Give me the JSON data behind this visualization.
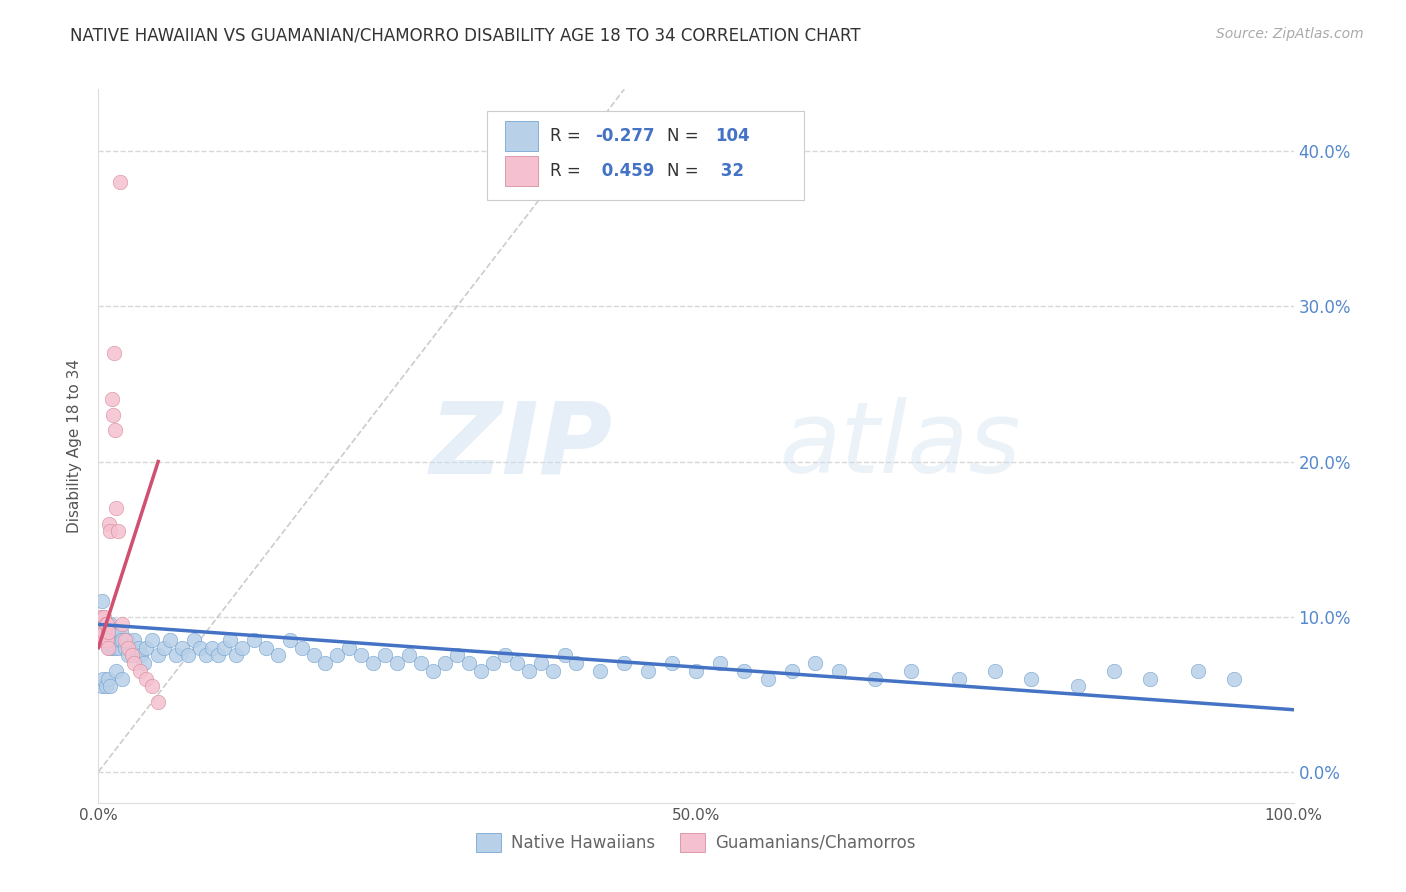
{
  "title": "NATIVE HAWAIIAN VS GUAMANIAN/CHAMORRO DISABILITY AGE 18 TO 34 CORRELATION CHART",
  "source": "Source: ZipAtlas.com",
  "ylabel": "Disability Age 18 to 34",
  "r_blue": -0.277,
  "n_blue": 104,
  "r_pink": 0.459,
  "n_pink": 32,
  "blue_color": "#b8d0e8",
  "blue_edge_color": "#6699cc",
  "blue_line_color": "#4472c4",
  "pink_color": "#f5c0d0",
  "pink_edge_color": "#d08090",
  "pink_line_color": "#d05070",
  "legend_label_blue": "Native Hawaiians",
  "legend_label_pink": "Guamanians/Chamorros",
  "watermark_zip": "ZIP",
  "watermark_atlas": "atlas",
  "diag_color": "#cccccc",
  "grid_color": "#d8d8d8",
  "background_color": "#ffffff",
  "blue_scatter_x": [
    0.002,
    0.003,
    0.004,
    0.005,
    0.005,
    0.006,
    0.007,
    0.007,
    0.008,
    0.009,
    0.01,
    0.011,
    0.012,
    0.013,
    0.014,
    0.015,
    0.016,
    0.017,
    0.018,
    0.019,
    0.02,
    0.022,
    0.024,
    0.026,
    0.028,
    0.03,
    0.032,
    0.034,
    0.036,
    0.038,
    0.04,
    0.045,
    0.05,
    0.055,
    0.06,
    0.065,
    0.07,
    0.075,
    0.08,
    0.085,
    0.09,
    0.095,
    0.1,
    0.105,
    0.11,
    0.115,
    0.12,
    0.13,
    0.14,
    0.15,
    0.16,
    0.17,
    0.18,
    0.19,
    0.2,
    0.21,
    0.22,
    0.23,
    0.24,
    0.25,
    0.26,
    0.27,
    0.28,
    0.29,
    0.3,
    0.31,
    0.32,
    0.33,
    0.34,
    0.35,
    0.36,
    0.37,
    0.38,
    0.39,
    0.4,
    0.42,
    0.44,
    0.46,
    0.48,
    0.5,
    0.52,
    0.54,
    0.56,
    0.58,
    0.6,
    0.62,
    0.65,
    0.68,
    0.72,
    0.75,
    0.78,
    0.82,
    0.85,
    0.88,
    0.92,
    0.95,
    0.003,
    0.004,
    0.006,
    0.008,
    0.01,
    0.015,
    0.02,
    0.025
  ],
  "blue_scatter_y": [
    0.09,
    0.11,
    0.1,
    0.095,
    0.085,
    0.09,
    0.095,
    0.085,
    0.09,
    0.08,
    0.095,
    0.08,
    0.09,
    0.085,
    0.08,
    0.085,
    0.09,
    0.08,
    0.085,
    0.09,
    0.085,
    0.08,
    0.085,
    0.08,
    0.075,
    0.085,
    0.075,
    0.08,
    0.075,
    0.07,
    0.08,
    0.085,
    0.075,
    0.08,
    0.085,
    0.075,
    0.08,
    0.075,
    0.085,
    0.08,
    0.075,
    0.08,
    0.075,
    0.08,
    0.085,
    0.075,
    0.08,
    0.085,
    0.08,
    0.075,
    0.085,
    0.08,
    0.075,
    0.07,
    0.075,
    0.08,
    0.075,
    0.07,
    0.075,
    0.07,
    0.075,
    0.07,
    0.065,
    0.07,
    0.075,
    0.07,
    0.065,
    0.07,
    0.075,
    0.07,
    0.065,
    0.07,
    0.065,
    0.075,
    0.07,
    0.065,
    0.07,
    0.065,
    0.07,
    0.065,
    0.07,
    0.065,
    0.06,
    0.065,
    0.07,
    0.065,
    0.06,
    0.065,
    0.06,
    0.065,
    0.06,
    0.055,
    0.065,
    0.06,
    0.065,
    0.06,
    0.055,
    0.06,
    0.055,
    0.06,
    0.055,
    0.065,
    0.06,
    0.075
  ],
  "pink_scatter_x": [
    0.001,
    0.002,
    0.003,
    0.003,
    0.004,
    0.004,
    0.005,
    0.005,
    0.006,
    0.006,
    0.007,
    0.007,
    0.008,
    0.008,
    0.009,
    0.01,
    0.011,
    0.012,
    0.013,
    0.014,
    0.015,
    0.016,
    0.018,
    0.02,
    0.022,
    0.025,
    0.028,
    0.03,
    0.035,
    0.04,
    0.045,
    0.05
  ],
  "pink_scatter_y": [
    0.09,
    0.1,
    0.09,
    0.085,
    0.095,
    0.085,
    0.09,
    0.1,
    0.095,
    0.085,
    0.095,
    0.085,
    0.09,
    0.08,
    0.16,
    0.155,
    0.24,
    0.23,
    0.27,
    0.22,
    0.17,
    0.155,
    0.38,
    0.095,
    0.085,
    0.08,
    0.075,
    0.07,
    0.065,
    0.06,
    0.055,
    0.045
  ],
  "xlim": [
    0.0,
    1.0
  ],
  "ylim": [
    -0.02,
    0.44
  ],
  "yticks": [
    0.0,
    0.1,
    0.2,
    0.3,
    0.4
  ],
  "ytick_labels": [
    "0.0%",
    "10.0%",
    "20.0%",
    "30.0%",
    "40.0%"
  ],
  "xtick_positions": [
    0.0,
    0.5,
    1.0
  ],
  "xtick_labels": [
    "0.0%",
    "50.0%",
    "100.0%"
  ]
}
